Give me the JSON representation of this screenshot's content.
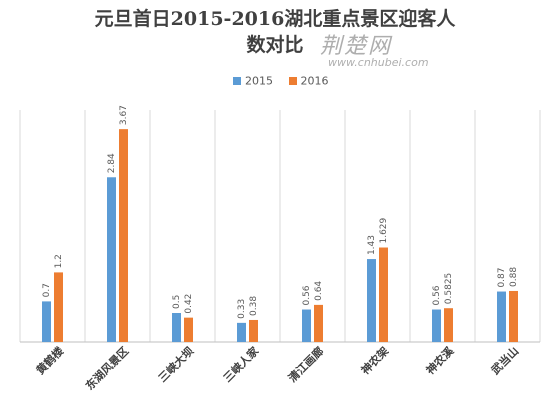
{
  "title_line1": "元旦首日2015-2016湖北重点景区迎客人",
  "title_line2": "数对比",
  "watermark": {
    "text": "荆楚网",
    "url": "www.cnhubei.com"
  },
  "colors": {
    "series_2015": "#5b9bd5",
    "series_2016": "#ed7d31",
    "grid": "#d9d9d9",
    "axis": "#bfbfbf",
    "text": "#404040"
  },
  "chart_data": {
    "type": "bar",
    "categories": [
      "黄鹤楼",
      "东湖风景区",
      "三峡大坝",
      "三峡人家",
      "清江画廊",
      "神农架",
      "神农溪",
      "武当山"
    ],
    "series": [
      {
        "name": "2015",
        "values": [
          0.7,
          2.84,
          0.5,
          0.33,
          0.56,
          1.43,
          0.56,
          0.87
        ],
        "labels": [
          "0.7",
          "2.84",
          "0.5",
          "0.33",
          "0.56",
          "1.43",
          "0.56",
          "0.87"
        ]
      },
      {
        "name": "2016",
        "values": [
          1.2,
          3.67,
          0.42,
          0.38,
          0.64,
          1.629,
          0.5825,
          0.88
        ],
        "labels": [
          "1.2",
          "3.67",
          "0.42",
          "0.38",
          "0.64",
          "1.629",
          "0.5825",
          "0.88"
        ]
      }
    ],
    "ylim": [
      0,
      4.0
    ],
    "grid": "vertical category separators",
    "legend_position": "top"
  }
}
